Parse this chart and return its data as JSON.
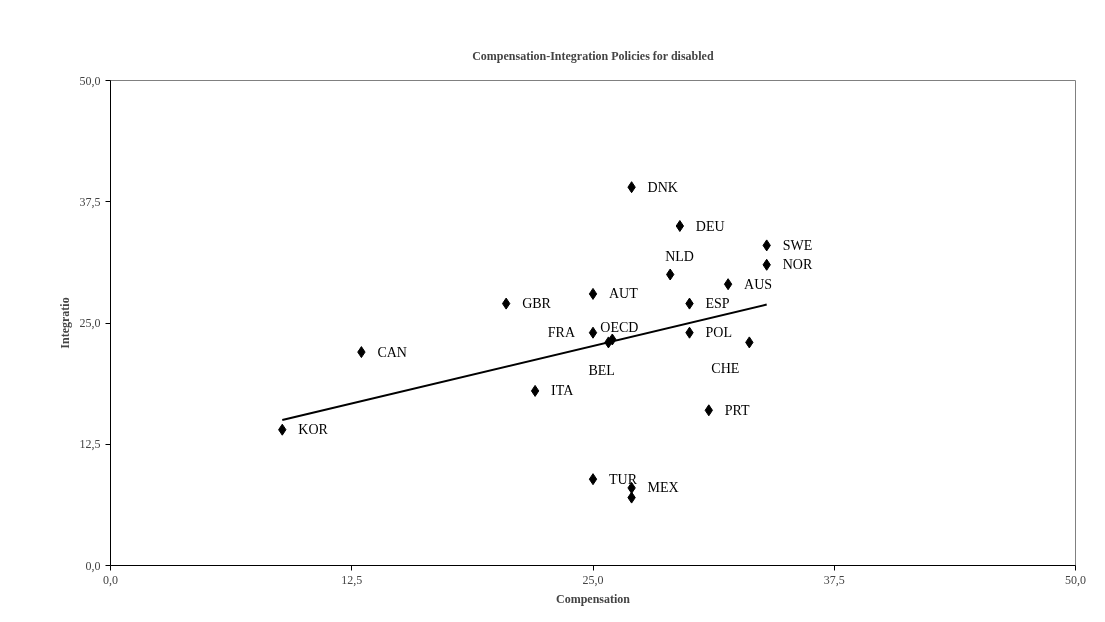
{
  "chart_data": {
    "type": "scatter",
    "title": "Compensation-Integration Policies for disabled",
    "xlabel": "Compensation",
    "ylabel": "Integratio",
    "xlim": [
      0,
      50
    ],
    "ylim": [
      0,
      50
    ],
    "xticks": [
      {
        "value": 0,
        "label": "0,0"
      },
      {
        "value": 12.5,
        "label": "12,5"
      },
      {
        "value": 25,
        "label": "25,0"
      },
      {
        "value": 37.5,
        "label": "37,5"
      },
      {
        "value": 50,
        "label": "50,0"
      }
    ],
    "yticks": [
      {
        "value": 0,
        "label": "0,0"
      },
      {
        "value": 12.5,
        "label": "12,5"
      },
      {
        "value": 25,
        "label": "25,0"
      },
      {
        "value": 37.5,
        "label": "37,5"
      },
      {
        "value": 50,
        "label": "50,0"
      }
    ],
    "grid": false,
    "series": [
      {
        "marker": "diamond",
        "color": "#000000",
        "x": [
          27.0,
          29.5,
          34.0,
          34.0,
          29.0,
          32.0,
          25.0,
          20.5,
          30.0,
          25.0,
          26.0,
          25.8,
          30.0,
          33.1,
          13.0,
          22.0,
          31.0,
          8.9,
          25.0,
          27.0,
          27.0
        ],
        "values": [
          39.0,
          35.0,
          33.0,
          31.0,
          30.0,
          29.0,
          28.0,
          27.0,
          27.0,
          24.0,
          23.3,
          23.0,
          24.0,
          23.0,
          22.0,
          18.0,
          16.0,
          14.0,
          8.9,
          8.0,
          7.0
        ],
        "value_labels": [
          "DNK",
          "DEU",
          "SWE",
          "NOR",
          "NLD",
          "AUS",
          "AUT",
          "GBR",
          "ESP",
          "FRA",
          "OECD",
          "BEL",
          "POL",
          "CHE",
          "CAN",
          "ITA",
          "PRT",
          "KOR",
          "TUR",
          "MEX",
          null
        ]
      },
      {
        "type": "line",
        "marker": "none",
        "color": "#000000",
        "line_style": "solid",
        "x": [
          8.9,
          34.0
        ],
        "values": [
          15.0,
          26.9
        ]
      }
    ]
  }
}
